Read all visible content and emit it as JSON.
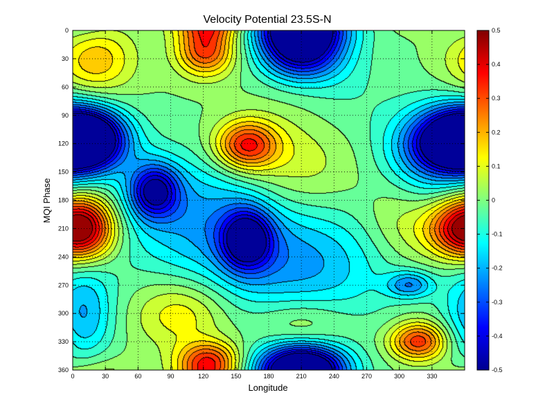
{
  "chart_data": {
    "type": "heatmap",
    "title": "Velocity Potential 23.5S-N",
    "xlabel": "Longitude",
    "ylabel": "MQI Phase",
    "xlim": [
      0,
      360
    ],
    "ylim": [
      0,
      360
    ],
    "y_reversed": true,
    "x_ticks": [
      "0",
      "30",
      "60",
      "90",
      "120",
      "150",
      "180",
      "210",
      "240",
      "270",
      "300",
      "330"
    ],
    "x_tick_values": [
      0,
      30,
      60,
      90,
      120,
      150,
      180,
      210,
      240,
      270,
      300,
      330
    ],
    "y_ticks": [
      "0",
      "30",
      "60",
      "90",
      "120",
      "150",
      "180",
      "210",
      "240",
      "270",
      "300",
      "330",
      "360"
    ],
    "y_tick_values": [
      0,
      30,
      60,
      90,
      120,
      150,
      180,
      210,
      240,
      270,
      300,
      330,
      360
    ],
    "grid": true,
    "grid_style": "dotted",
    "contour_interval": 0.05,
    "colorbar": {
      "min": -0.5,
      "max": 0.5,
      "ticks": [
        "0.5",
        "0.4",
        "0.3",
        "0.2",
        "0.1",
        "0",
        "-0.1",
        "-0.2",
        "-0.3",
        "-0.4",
        "-0.5"
      ],
      "tick_values": [
        0.5,
        0.4,
        0.3,
        0.2,
        0.1,
        0,
        -0.1,
        -0.2,
        -0.3,
        -0.4,
        -0.5
      ],
      "colormap": "jet",
      "placement": "right"
    },
    "features": [
      {
        "type": "low",
        "lon": 10,
        "phase": 115,
        "value": -0.5,
        "slon": 26,
        "sphase": 22
      },
      {
        "type": "low",
        "lon": 355,
        "phase": 118,
        "value": -0.5,
        "slon": 30,
        "sphase": 24
      },
      {
        "type": "low",
        "lon": 210,
        "phase": 20,
        "value": -0.5,
        "slon": 26,
        "sphase": 22
      },
      {
        "type": "low",
        "lon": 210,
        "phase": 355,
        "value": -0.45,
        "slon": 28,
        "sphase": 16
      },
      {
        "type": "low",
        "lon": 75,
        "phase": 170,
        "value": -0.4,
        "slon": 16,
        "sphase": 20
      },
      {
        "type": "low",
        "lon": 160,
        "phase": 222,
        "value": -0.42,
        "slon": 16,
        "sphase": 22
      },
      {
        "type": "low",
        "lon": 120,
        "phase": 195,
        "value": -0.2,
        "slon": 60,
        "sphase": 45
      },
      {
        "type": "low",
        "lon": 10,
        "phase": 300,
        "value": -0.2,
        "slon": 20,
        "sphase": 40
      },
      {
        "type": "low",
        "lon": 210,
        "phase": 250,
        "value": -0.2,
        "slon": 60,
        "sphase": 45
      },
      {
        "type": "low",
        "lon": 310,
        "phase": 270,
        "value": -0.22,
        "slon": 15,
        "sphase": 10
      },
      {
        "type": "low",
        "lon": 320,
        "phase": 140,
        "value": -0.15,
        "slon": 30,
        "sphase": 40
      },
      {
        "type": "high",
        "lon": 160,
        "phase": 122,
        "value": 0.36,
        "slon": 20,
        "sphase": 18
      },
      {
        "type": "high",
        "lon": 10,
        "phase": 210,
        "value": 0.35,
        "slon": 20,
        "sphase": 24
      },
      {
        "type": "high",
        "lon": 355,
        "phase": 210,
        "value": 0.3,
        "slon": 25,
        "sphase": 22
      },
      {
        "type": "high",
        "lon": 122,
        "phase": 22,
        "value": 0.32,
        "slon": 18,
        "sphase": 18
      },
      {
        "type": "high",
        "lon": 318,
        "phase": 330,
        "value": 0.34,
        "slon": 18,
        "sphase": 14
      },
      {
        "type": "high",
        "lon": 125,
        "phase": 350,
        "value": 0.3,
        "slon": 20,
        "sphase": 14
      },
      {
        "type": "high",
        "lon": 20,
        "phase": 30,
        "value": 0.2,
        "slon": 24,
        "sphase": 25
      },
      {
        "type": "high",
        "lon": 210,
        "phase": 310,
        "value": 0.1,
        "slon": 30,
        "sphase": 20
      },
      {
        "type": "high",
        "lon": 100,
        "phase": 300,
        "value": 0.15,
        "slon": 30,
        "sphase": 25
      },
      {
        "type": "high",
        "lon": 200,
        "phase": 150,
        "value": 0.12,
        "slon": 40,
        "sphase": 40
      },
      {
        "type": "high",
        "lon": 300,
        "phase": 200,
        "value": 0.1,
        "slon": 25,
        "sphase": 35
      },
      {
        "type": "high",
        "lon": 250,
        "phase": 60,
        "value": -0.05,
        "slon": 30,
        "sphase": 40
      }
    ]
  }
}
